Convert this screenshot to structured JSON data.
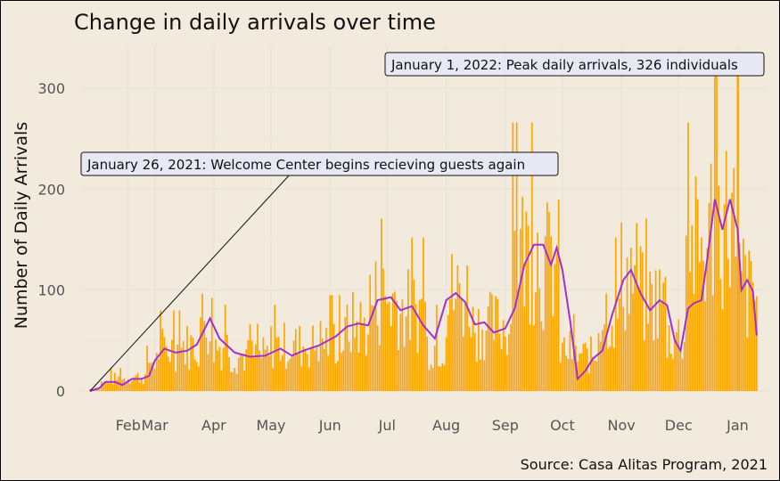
{
  "chart_data": {
    "type": "bar",
    "title": "Change in daily arrivals over time",
    "ylabel": "Number of Daily Arrivals",
    "xlabel": "",
    "caption": "Source: Casa Alitas Program, 2021",
    "x_range": [
      "2021-01-26",
      "2022-01-12"
    ],
    "ylim": [
      0,
      340
    ],
    "y_ticks": [
      0,
      100,
      200,
      300
    ],
    "x_ticks": [
      {
        "date": "2021-02-15",
        "label": "Feb"
      },
      {
        "date": "2021-03-01",
        "label": "Mar"
      },
      {
        "date": "2021-04-01",
        "label": "Apr"
      },
      {
        "date": "2021-05-01",
        "label": "May"
      },
      {
        "date": "2021-06-01",
        "label": "Jun"
      },
      {
        "date": "2021-07-01",
        "label": "Jul"
      },
      {
        "date": "2021-08-01",
        "label": "Aug"
      },
      {
        "date": "2021-09-01",
        "label": "Sep"
      },
      {
        "date": "2021-10-01",
        "label": "Oct"
      },
      {
        "date": "2021-11-01",
        "label": "Nov"
      },
      {
        "date": "2021-12-01",
        "label": "Dec"
      },
      {
        "date": "2022-01-01",
        "label": "Jan"
      }
    ],
    "grid": true,
    "bar_color": "#ffa500",
    "line_color": "#a030d0",
    "series": [
      {
        "kind": "bar",
        "segments": [
          {
            "from": "2021-01-26",
            "to": "2021-02-01",
            "level": 2
          },
          {
            "from": "2021-02-01",
            "to": "2021-02-05",
            "level": 8
          },
          {
            "from": "2021-02-05",
            "to": "2021-02-15",
            "level": 12
          },
          {
            "from": "2021-02-15",
            "to": "2021-02-25",
            "level": 14
          },
          {
            "from": "2021-02-25",
            "to": "2021-03-03",
            "level": 30
          },
          {
            "from": "2021-03-03",
            "to": "2021-03-15",
            "level": 42
          },
          {
            "from": "2021-03-15",
            "to": "2021-03-25",
            "level": 45
          },
          {
            "from": "2021-03-25",
            "to": "2021-04-01",
            "level": 70
          },
          {
            "from": "2021-04-01",
            "to": "2021-04-10",
            "level": 45
          },
          {
            "from": "2021-04-10",
            "to": "2021-05-01",
            "level": 35
          },
          {
            "from": "2021-05-01",
            "to": "2021-05-25",
            "level": 45
          },
          {
            "from": "2021-05-25",
            "to": "2021-06-10",
            "level": 50
          },
          {
            "from": "2021-06-10",
            "to": "2021-06-22",
            "level": 65
          },
          {
            "from": "2021-06-22",
            "to": "2021-07-08",
            "level": 90
          },
          {
            "from": "2021-07-08",
            "to": "2021-07-22",
            "level": 80
          },
          {
            "from": "2021-07-22",
            "to": "2021-08-01",
            "level": 45
          },
          {
            "from": "2021-08-01",
            "to": "2021-08-15",
            "level": 95
          },
          {
            "from": "2021-08-15",
            "to": "2021-08-25",
            "level": 65
          },
          {
            "from": "2021-08-25",
            "to": "2021-09-05",
            "level": 65
          },
          {
            "from": "2021-09-05",
            "to": "2021-09-20",
            "level": 140
          },
          {
            "from": "2021-09-20",
            "to": "2021-09-30",
            "level": 125
          },
          {
            "from": "2021-09-30",
            "to": "2021-10-08",
            "level": 40
          },
          {
            "from": "2021-10-08",
            "to": "2021-10-20",
            "level": 35
          },
          {
            "from": "2021-10-20",
            "to": "2021-11-01",
            "level": 80
          },
          {
            "from": "2021-11-01",
            "to": "2021-11-12",
            "level": 115
          },
          {
            "from": "2021-11-12",
            "to": "2021-11-25",
            "level": 90
          },
          {
            "from": "2021-11-25",
            "to": "2021-12-05",
            "level": 55
          },
          {
            "from": "2021-12-05",
            "to": "2021-12-18",
            "level": 140
          },
          {
            "from": "2021-12-18",
            "to": "2021-12-31",
            "level": 170
          },
          {
            "from": "2021-12-31",
            "to": "2022-01-06",
            "level": 110
          },
          {
            "from": "2022-01-06",
            "to": "2022-01-12",
            "level": 95
          }
        ]
      },
      {
        "kind": "line",
        "points": [
          [
            "2021-01-26",
            0
          ],
          [
            "2021-01-31",
            3
          ],
          [
            "2021-02-03",
            9
          ],
          [
            "2021-02-08",
            9
          ],
          [
            "2021-02-12",
            6
          ],
          [
            "2021-02-17",
            12
          ],
          [
            "2021-02-22",
            12
          ],
          [
            "2021-02-26",
            15
          ],
          [
            "2021-03-01",
            30
          ],
          [
            "2021-03-06",
            42
          ],
          [
            "2021-03-12",
            38
          ],
          [
            "2021-03-18",
            40
          ],
          [
            "2021-03-23",
            46
          ],
          [
            "2021-03-30",
            72
          ],
          [
            "2021-04-04",
            52
          ],
          [
            "2021-04-12",
            38
          ],
          [
            "2021-04-20",
            34
          ],
          [
            "2021-04-28",
            35
          ],
          [
            "2021-05-06",
            42
          ],
          [
            "2021-05-12",
            35
          ],
          [
            "2021-05-18",
            40
          ],
          [
            "2021-05-26",
            45
          ],
          [
            "2021-06-04",
            54
          ],
          [
            "2021-06-10",
            64
          ],
          [
            "2021-06-16",
            67
          ],
          [
            "2021-06-21",
            65
          ],
          [
            "2021-06-26",
            90
          ],
          [
            "2021-07-03",
            93
          ],
          [
            "2021-07-08",
            80
          ],
          [
            "2021-07-14",
            84
          ],
          [
            "2021-07-20",
            65
          ],
          [
            "2021-07-26",
            52
          ],
          [
            "2021-08-01",
            90
          ],
          [
            "2021-08-06",
            97
          ],
          [
            "2021-08-11",
            88
          ],
          [
            "2021-08-16",
            66
          ],
          [
            "2021-08-21",
            68
          ],
          [
            "2021-08-26",
            58
          ],
          [
            "2021-09-01",
            62
          ],
          [
            "2021-09-06",
            82
          ],
          [
            "2021-09-11",
            125
          ],
          [
            "2021-09-16",
            145
          ],
          [
            "2021-09-21",
            145
          ],
          [
            "2021-09-25",
            125
          ],
          [
            "2021-09-28",
            142
          ],
          [
            "2021-10-01",
            120
          ],
          [
            "2021-10-05",
            70
          ],
          [
            "2021-10-09",
            12
          ],
          [
            "2021-10-13",
            20
          ],
          [
            "2021-10-17",
            32
          ],
          [
            "2021-10-22",
            40
          ],
          [
            "2021-10-27",
            75
          ],
          [
            "2021-11-02",
            110
          ],
          [
            "2021-11-06",
            120
          ],
          [
            "2021-11-11",
            97
          ],
          [
            "2021-11-16",
            80
          ],
          [
            "2021-11-21",
            90
          ],
          [
            "2021-11-25",
            85
          ],
          [
            "2021-11-29",
            50
          ],
          [
            "2021-12-02",
            40
          ],
          [
            "2021-12-06",
            82
          ],
          [
            "2021-12-09",
            87
          ],
          [
            "2021-12-13",
            90
          ],
          [
            "2021-12-16",
            130
          ],
          [
            "2021-12-20",
            190
          ],
          [
            "2021-12-24",
            160
          ],
          [
            "2021-12-28",
            190
          ],
          [
            "2022-01-01",
            160
          ],
          [
            "2022-01-03",
            100
          ],
          [
            "2022-01-06",
            110
          ],
          [
            "2022-01-09",
            99
          ],
          [
            "2022-01-11",
            55
          ]
        ]
      }
    ],
    "annotations": [
      {
        "text": "January 26, 2021: Welcome Center begins recieving guests again",
        "date": "2021-01-26",
        "value": 0
      },
      {
        "text": "January 1, 2022: Peak daily arrivals, 326 individuals",
        "date": "2022-01-01",
        "value": 326
      }
    ]
  }
}
